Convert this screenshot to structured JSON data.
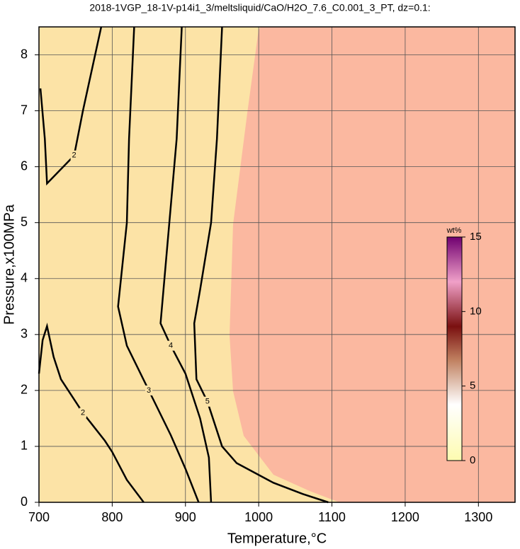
{
  "chart_data": {
    "type": "contour",
    "title": "2018-1VGP_18-1V-p14i1_3/meltsliquid/CaO/H2O_7.6_C0.001_3_PT, dz=0.1:",
    "x_label": "Temperature,°C",
    "y_label": "Pressure,x100MPa",
    "xlim": [
      700,
      1350
    ],
    "ylim": [
      0,
      8.5
    ],
    "xticks": [
      700,
      800,
      900,
      1000,
      1100,
      1200,
      1300
    ],
    "yticks": [
      0,
      1,
      2,
      3,
      4,
      5,
      6,
      7,
      8
    ],
    "grid": true,
    "contours": [
      {
        "level": 2,
        "x": [
          702,
          708,
          711,
          748,
          760,
          775,
          785
        ],
        "y": [
          7.4,
          6.5,
          5.7,
          6.2,
          7.0,
          7.9,
          8.5
        ]
      },
      {
        "level": 2,
        "x": [
          700,
          705,
          711,
          720,
          730,
          760,
          790,
          800,
          820,
          843
        ],
        "y": [
          2.3,
          2.9,
          3.15,
          2.6,
          2.2,
          1.6,
          1.1,
          0.9,
          0.4,
          0
        ]
      },
      {
        "level": 3,
        "x": [
          830,
          823,
          820,
          808,
          820,
          850,
          880,
          900,
          915,
          918
        ],
        "y": [
          8.5,
          6.5,
          5,
          3.5,
          2.8,
          2.0,
          1.2,
          0.6,
          0.1,
          0
        ]
      },
      {
        "level": 4,
        "x": [
          895,
          888,
          878,
          866,
          880,
          900,
          920,
          932,
          935
        ],
        "y": [
          8.5,
          6.5,
          5,
          3.2,
          2.8,
          2.3,
          1.5,
          0.8,
          0
        ]
      },
      {
        "level": 5,
        "x": [
          950,
          943,
          935,
          920,
          912,
          915,
          930,
          950,
          970,
          1020,
          1060,
          1095
        ],
        "y": [
          8.5,
          6.5,
          5,
          3.8,
          3.2,
          2.2,
          1.8,
          1.0,
          0.7,
          0.35,
          0.15,
          0
        ]
      }
    ],
    "colorbar": {
      "label": "wt%",
      "lim": [
        0,
        15
      ],
      "ticks": [
        0,
        5,
        10,
        15
      ]
    }
  }
}
